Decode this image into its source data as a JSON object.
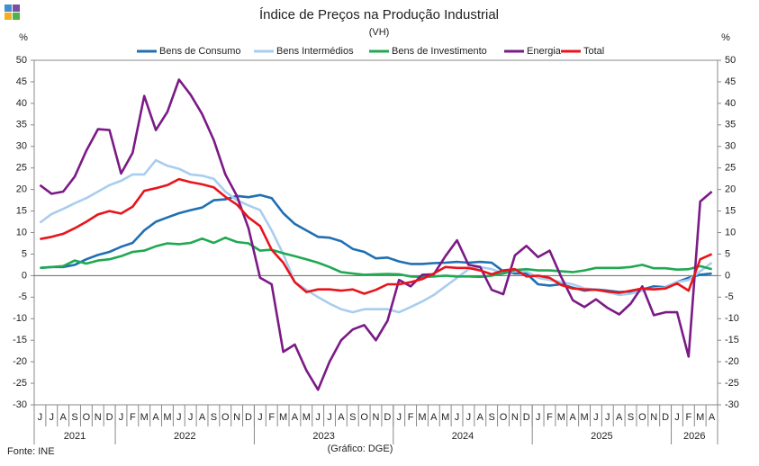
{
  "chart_data": {
    "type": "line",
    "title": "Índice de Preços na Produção Industrial",
    "subtitle": "(VH)",
    "y_label": "%",
    "y2_label": "%",
    "source": "Fonte: INE",
    "note": "(Gráfico: DGE)",
    "categories": [
      "J",
      "J",
      "A",
      "S",
      "O",
      "N",
      "D",
      "J",
      "F",
      "M",
      "A",
      "M",
      "J",
      "J",
      "A",
      "S",
      "O",
      "N",
      "D",
      "J",
      "F",
      "M",
      "A",
      "M",
      "J",
      "J",
      "A",
      "S",
      "O",
      "N",
      "D",
      "J",
      "F",
      "M",
      "A",
      "M",
      "J",
      "J",
      "A",
      "S",
      "O",
      "N",
      "D",
      "J",
      "F",
      "M",
      "A",
      "M",
      "J",
      "J",
      "A",
      "S",
      "O",
      "N",
      "D",
      "J",
      "F",
      "M",
      "A"
    ],
    "year_groups": [
      {
        "label": "2021",
        "months": 7
      },
      {
        "label": "2022",
        "months": 12
      },
      {
        "label": "2023",
        "months": 12
      },
      {
        "label": "2024",
        "months": 12
      },
      {
        "label": "2025",
        "months": 12
      },
      {
        "label": "2026",
        "months": 4
      }
    ],
    "series": [
      {
        "name": "Bens de Consumo",
        "color": "#1f6fb2",
        "values": [
          1.8,
          2,
          2,
          2.5,
          3.8,
          4.8,
          5.5,
          6.7,
          7.6,
          10.5,
          12.5,
          13.5,
          14.5,
          15.2,
          15.8,
          17.5,
          17.7,
          18.5,
          18.2,
          18.7,
          18,
          14.5,
          12,
          10.5,
          9,
          8.8,
          8,
          6.2,
          5.5,
          4,
          4.2,
          3.3,
          2.7,
          2.7,
          2.9,
          3,
          3.2,
          3,
          3.2,
          3,
          1,
          0.5,
          0.5,
          -2,
          -2.3,
          -2,
          -2.8,
          -3.5,
          -3.2,
          -3.5,
          -3.8,
          -3.7,
          -3.2,
          -2.5,
          -2.7,
          -1.5,
          -0.5,
          0.2,
          0.5
        ]
      },
      {
        "name": "Bens Intermédios",
        "color": "#a9cdee",
        "values": [
          12.3,
          14.3,
          15.5,
          16.8,
          18,
          19.5,
          21,
          22,
          23.5,
          23.5,
          26.8,
          25.5,
          24.8,
          23.5,
          23.2,
          22.5,
          19.5,
          17.5,
          16.3,
          15.2,
          10.5,
          5,
          -1.5,
          -3.3,
          -5,
          -6.5,
          -7.8,
          -8.5,
          -7.8,
          -7.8,
          -7.8,
          -8.5,
          -7.3,
          -6,
          -4.5,
          -2.5,
          -0.5,
          1.5,
          2,
          1.5,
          0.5,
          1,
          1,
          -0.5,
          -1,
          -1.5,
          -2,
          -3,
          -3.2,
          -3.8,
          -4.5,
          -4.2,
          -3.5,
          -3,
          -2.8,
          -1.5,
          -1,
          1,
          3
        ]
      },
      {
        "name": "Bens de Investimento",
        "color": "#20a852",
        "values": [
          1.8,
          2,
          2.2,
          3.5,
          2.8,
          3.5,
          3.8,
          4.5,
          5.5,
          5.8,
          6.8,
          7.5,
          7.3,
          7.6,
          8.6,
          7.6,
          8.8,
          7.8,
          7.5,
          5.8,
          6,
          5.2,
          4.5,
          3.8,
          3,
          2,
          0.8,
          0.5,
          0.2,
          0.3,
          0.4,
          0.3,
          -0.2,
          -0.3,
          -0.2,
          0,
          -0.2,
          -0.2,
          -0.3,
          0,
          0.5,
          1.3,
          1.5,
          1.2,
          1.2,
          1,
          0.8,
          1.2,
          1.8,
          1.8,
          1.8,
          2,
          2.5,
          1.7,
          1.7,
          1.4,
          1.5,
          2.2,
          1.5
        ]
      },
      {
        "name": "Energia",
        "color": "#7b1a86",
        "values": [
          21,
          19,
          19.5,
          23,
          29,
          34,
          33.8,
          23.7,
          28.5,
          41.7,
          33.8,
          38,
          45.5,
          42,
          37.5,
          31.5,
          23.5,
          18.5,
          11,
          -0.5,
          -2,
          -17.7,
          -16,
          -22,
          -26.5,
          -20,
          -15,
          -12.5,
          -11.5,
          -15,
          -10.5,
          -1,
          -2.5,
          0.2,
          0.3,
          4.5,
          8.2,
          2.5,
          2,
          -3.3,
          -4.3,
          4.7,
          6.9,
          4.3,
          5.8,
          -0.3,
          -5.7,
          -7.3,
          -5.5,
          -7.5,
          -9,
          -6.5,
          -2.5,
          -9.2,
          -8.5,
          -8.5,
          -18.8,
          17.2,
          19.5
        ]
      },
      {
        "name": "Total",
        "color": "#e8141b",
        "values": [
          8.5,
          9,
          9.7,
          11,
          12.5,
          14.2,
          15,
          14.4,
          16,
          19.7,
          20.3,
          21,
          22.4,
          21.7,
          21.2,
          20.5,
          18.3,
          16.5,
          13.5,
          11.5,
          6,
          3,
          -1.5,
          -3.8,
          -3.2,
          -3.2,
          -3.5,
          -3.2,
          -4.2,
          -3.3,
          -2,
          -2,
          -1.5,
          -0.8,
          0.5,
          2,
          1.8,
          1.8,
          1.2,
          0.3,
          1.2,
          1.5,
          -0.2,
          0,
          -0.5,
          -2.2,
          -3,
          -3.2,
          -3.3,
          -3.7,
          -4,
          -3.5,
          -3,
          -3.2,
          -3,
          -1.8,
          -3.5,
          3.8,
          5
        ]
      }
    ],
    "ylim": [
      -30,
      50
    ],
    "yticks": [
      -30,
      -25,
      -20,
      -15,
      -10,
      -5,
      0,
      5,
      10,
      15,
      20,
      25,
      30,
      35,
      40,
      45,
      50
    ],
    "y2lim": [
      -30,
      50
    ],
    "y2ticks": [
      -30,
      -25,
      -20,
      -15,
      -10,
      -5,
      0,
      5,
      10,
      15,
      20,
      25,
      30,
      35,
      40,
      45,
      50
    ],
    "legend": "top"
  }
}
